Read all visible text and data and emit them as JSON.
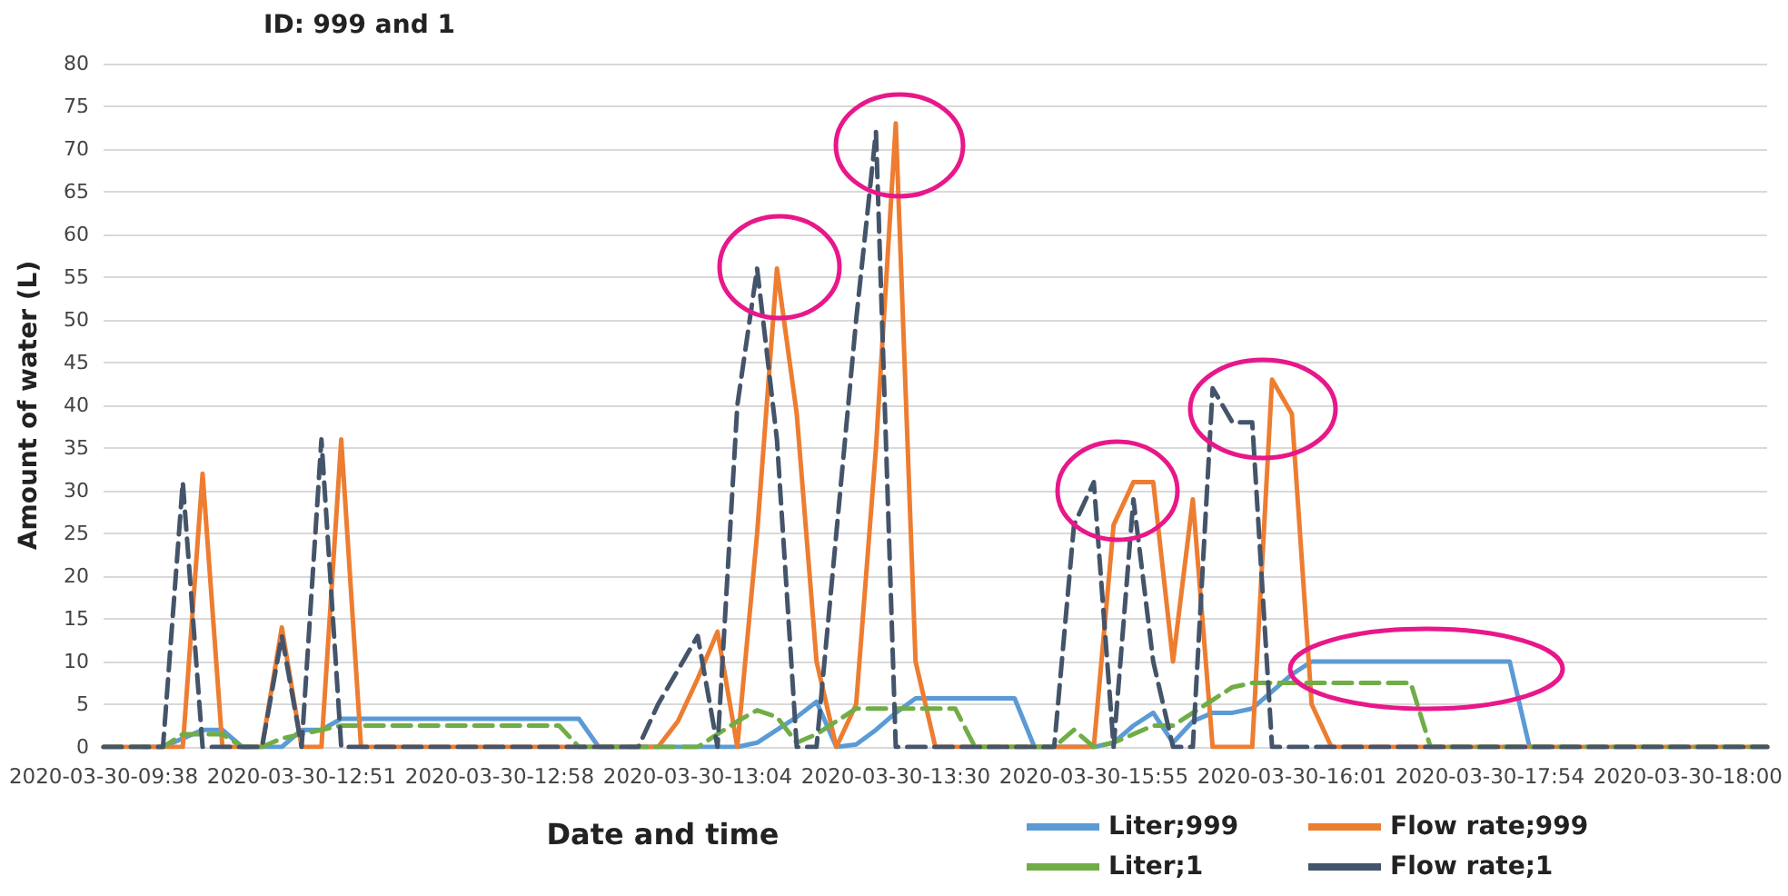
{
  "chart_data": {
    "type": "line",
    "title": "ID: 999 and 1",
    "xlabel": "Date and time",
    "ylabel": "Amount of water (L)",
    "categories": [
      "2020-03-30-09:38",
      null,
      null,
      null,
      null,
      null,
      null,
      null,
      null,
      null,
      "2020-03-30-12:51",
      null,
      null,
      null,
      null,
      null,
      null,
      null,
      null,
      null,
      "2020-03-30-12:58",
      null,
      null,
      null,
      null,
      null,
      null,
      null,
      null,
      null,
      "2020-03-30-13:04",
      null,
      null,
      null,
      null,
      null,
      null,
      null,
      null,
      null,
      "2020-03-30-13:30",
      null,
      null,
      null,
      null,
      null,
      null,
      null,
      null,
      null,
      "2020-03-30-15:55",
      null,
      null,
      null,
      null,
      null,
      null,
      null,
      null,
      null,
      "2020-03-30-16:01",
      null,
      null,
      null,
      null,
      null,
      null,
      null,
      null,
      null,
      "2020-03-30-17:54",
      null,
      null,
      null,
      null,
      null,
      null,
      null,
      null,
      null,
      "2020-03-30-18:00",
      null,
      null,
      null,
      null
    ],
    "series": [
      {
        "name": "Liter;999",
        "color": "#5b9bd5",
        "line_style": "solid",
        "values": [
          null,
          null,
          0,
          0,
          1,
          2,
          2,
          0,
          0,
          0,
          2,
          2,
          3.3,
          3.3,
          3.3,
          3.3,
          3.3,
          3.3,
          3.3,
          3.3,
          3.3,
          3.3,
          3.3,
          3.3,
          3.3,
          0,
          0,
          0,
          0,
          0,
          0,
          0,
          0,
          0.5,
          2,
          3.5,
          5.3,
          0,
          0.3,
          2,
          4,
          5.7,
          5.7,
          5.7,
          5.7,
          5.7,
          5.7,
          0,
          0,
          0,
          0,
          0.5,
          2.5,
          4,
          0.5,
          3,
          4,
          4,
          4.5,
          6.5,
          8.5,
          10,
          10,
          10,
          10,
          10,
          10,
          10,
          10,
          10,
          10,
          10,
          0,
          0,
          null,
          null,
          null,
          null,
          null,
          null,
          null,
          null,
          null,
          null,
          null
        ]
      },
      {
        "name": "Flow rate;999",
        "color": "#ed7d31",
        "line_style": "solid",
        "values": [
          0,
          0,
          0,
          0,
          0,
          32,
          0,
          0,
          0,
          14,
          0,
          0,
          36,
          0,
          0,
          0,
          0,
          0,
          0,
          0,
          0,
          0,
          0,
          0,
          0,
          0,
          0,
          0,
          0,
          3,
          8,
          13.5,
          0,
          25,
          56,
          39,
          10,
          0,
          5,
          35,
          73,
          10,
          0,
          0,
          0,
          0,
          0,
          0,
          0,
          0,
          0,
          26,
          31,
          31,
          10,
          29,
          0,
          0,
          0,
          43,
          39,
          5,
          0,
          0,
          0,
          0,
          0,
          0,
          0,
          0,
          0,
          0,
          0,
          0,
          0,
          0,
          0,
          0,
          0,
          0,
          0,
          0,
          0,
          0,
          0
        ]
      },
      {
        "name": "Liter;1",
        "color": "#70ad47",
        "line_style": "dashed",
        "values": [
          0,
          0,
          0,
          0,
          1.5,
          1.5,
          1.5,
          0,
          0,
          1,
          1.5,
          2,
          2.5,
          2.5,
          2.5,
          2.5,
          2.5,
          2.5,
          2.5,
          2.5,
          2.5,
          2.5,
          2.5,
          2.5,
          0,
          0,
          0,
          0,
          0,
          0,
          0,
          1.5,
          3,
          4.3,
          3.5,
          0.5,
          1.5,
          3,
          4.5,
          4.5,
          4.5,
          4.5,
          4.5,
          4.5,
          0,
          0,
          0,
          0,
          0,
          2,
          0,
          0.5,
          1.5,
          2.5,
          2.5,
          4,
          5.5,
          7,
          7.5,
          7.5,
          7.5,
          7.5,
          7.5,
          7.5,
          7.5,
          7.5,
          7.5,
          0,
          0,
          0,
          0,
          0,
          0,
          0,
          0,
          0,
          0,
          0,
          0,
          0,
          0,
          0,
          0,
          0,
          0
        ]
      },
      {
        "name": "Flow rate;1",
        "color": "#44546a",
        "line_style": "dashed",
        "values": [
          0,
          0,
          0,
          0,
          31,
          0,
          0,
          0,
          0,
          13,
          0,
          36,
          0,
          0,
          0,
          0,
          0,
          0,
          0,
          0,
          0,
          0,
          0,
          0,
          0,
          0,
          0,
          0,
          5,
          9,
          13,
          0,
          40,
          56,
          36,
          0,
          0,
          25,
          50,
          72,
          0,
          0,
          0,
          0,
          0,
          0,
          0,
          0,
          0,
          26,
          31,
          0,
          29,
          10,
          0,
          0,
          42,
          38,
          38,
          0,
          0,
          0,
          0,
          0,
          0,
          0,
          0,
          0,
          0,
          0,
          0,
          0,
          0,
          0,
          0,
          0,
          0,
          0,
          0,
          0,
          0,
          0,
          0,
          0,
          0
        ]
      }
    ],
    "ylim": [
      0,
      80
    ],
    "yticks": [
      0,
      5,
      10,
      15,
      20,
      25,
      30,
      35,
      40,
      45,
      50,
      55,
      60,
      65,
      70,
      75,
      80
    ],
    "grid": "y",
    "legend": "bottom right",
    "marker": "none"
  }
}
